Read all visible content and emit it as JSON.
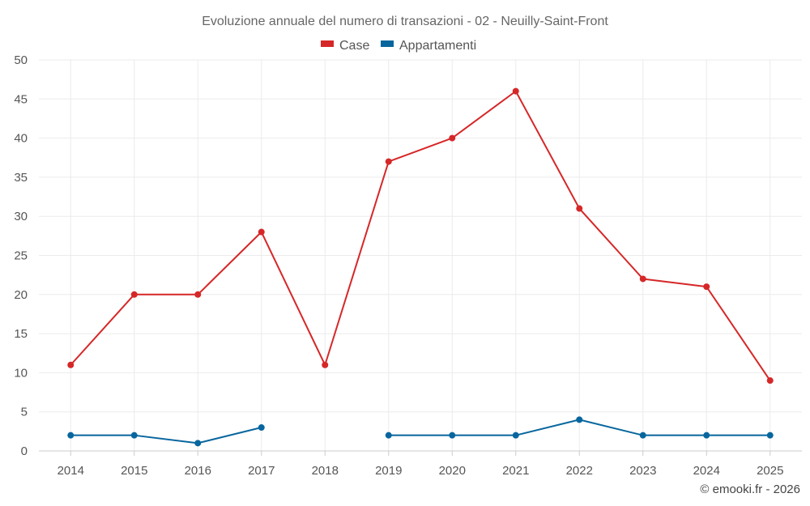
{
  "chart_data": {
    "type": "line",
    "title": "Evoluzione annuale del numero di transazioni - 02 - Neuilly-Saint-Front",
    "categories": [
      "2014",
      "2015",
      "2016",
      "2017",
      "2018",
      "2019",
      "2020",
      "2021",
      "2022",
      "2023",
      "2024",
      "2025"
    ],
    "series": [
      {
        "name": "Case",
        "color": "#d62728",
        "values": [
          11,
          20,
          20,
          28,
          11,
          37,
          40,
          46,
          31,
          22,
          21,
          9
        ]
      },
      {
        "name": "Appartamenti",
        "color": "#08669e",
        "values": [
          2,
          2,
          1,
          3,
          null,
          2,
          2,
          2,
          4,
          2,
          2,
          2
        ]
      }
    ],
    "ylim": [
      0,
      50
    ],
    "yticks": [
      0,
      5,
      10,
      15,
      20,
      25,
      30,
      35,
      40,
      45,
      50
    ],
    "xlabel": "",
    "ylabel": "",
    "legend_position": "top-center",
    "grid": true
  },
  "credit": "© emooki.fr - 2026"
}
